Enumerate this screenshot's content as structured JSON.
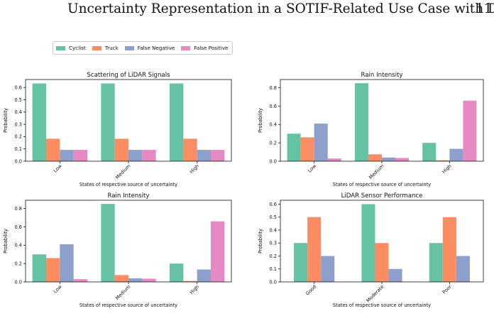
{
  "header": {
    "running_title": "Uncertainty Representation in a SOTIF-Related Use Case with DST",
    "page_number": "11"
  },
  "legend": [
    {
      "name": "Cyclist",
      "color": "#66c2a5"
    },
    {
      "name": "Truck",
      "color": "#fc8d62"
    },
    {
      "name": "False Negative",
      "color": "#8da0cb"
    },
    {
      "name": "False Positive",
      "color": "#e78ac3"
    }
  ],
  "chart_data": [
    {
      "type": "bar",
      "title": "Scattering of LiDAR Signals",
      "xlabel": "States of respective source of uncertainty",
      "ylabel": "Probability",
      "categories": [
        "Low",
        "Medium",
        "High"
      ],
      "ylim": [
        0,
        0.665
      ],
      "yticks": [
        0.0,
        0.1,
        0.2,
        0.3,
        0.4,
        0.5,
        0.6
      ],
      "ytick_labels": [
        "0.0",
        "0.1",
        "0.2",
        "0.3",
        "0.4",
        "0.5",
        "0.6"
      ],
      "series": [
        {
          "name": "Cyclist",
          "values": [
            0.633,
            0.633,
            0.633
          ]
        },
        {
          "name": "Truck",
          "values": [
            0.183,
            0.183,
            0.183
          ]
        },
        {
          "name": "False Negative",
          "values": [
            0.092,
            0.092,
            0.092
          ]
        },
        {
          "name": "False Positive",
          "values": [
            0.092,
            0.092,
            0.092
          ]
        }
      ]
    },
    {
      "type": "bar",
      "title": "Rain Intensity",
      "xlabel": "States of respective source of uncertainty",
      "ylabel": "Probability",
      "categories": [
        "Low",
        "Medium",
        "High"
      ],
      "ylim": [
        0,
        0.89
      ],
      "yticks": [
        0.0,
        0.2,
        0.4,
        0.6,
        0.8
      ],
      "ytick_labels": [
        "0.0",
        "0.2",
        "0.4",
        "0.6",
        "0.8"
      ],
      "series": [
        {
          "name": "Cyclist",
          "values": [
            0.3,
            0.85,
            0.2
          ]
        },
        {
          "name": "Truck",
          "values": [
            0.26,
            0.075,
            0.01
          ]
        },
        {
          "name": "False Negative",
          "values": [
            0.41,
            0.04,
            0.135
          ]
        },
        {
          "name": "False Positive",
          "values": [
            0.03,
            0.035,
            0.66
          ]
        }
      ]
    },
    {
      "type": "bar",
      "title": "Rain Intensity",
      "xlabel": "States of respective source of uncertainty",
      "ylabel": "Probability",
      "categories": [
        "Low",
        "Medium",
        "High"
      ],
      "ylim": [
        0,
        0.89
      ],
      "yticks": [
        0.0,
        0.2,
        0.4,
        0.6,
        0.8
      ],
      "ytick_labels": [
        "0.0",
        "0.2",
        "0.4",
        "0.6",
        "0.8"
      ],
      "series": [
        {
          "name": "Cyclist",
          "values": [
            0.3,
            0.85,
            0.2
          ]
        },
        {
          "name": "Truck",
          "values": [
            0.26,
            0.075,
            0.01
          ]
        },
        {
          "name": "False Negative",
          "values": [
            0.41,
            0.04,
            0.135
          ]
        },
        {
          "name": "False Positive",
          "values": [
            0.03,
            0.035,
            0.66
          ]
        }
      ]
    },
    {
      "type": "bar",
      "title": "LiDAR Sensor Performance",
      "xlabel": "States of respective source of uncertainty",
      "ylabel": "Probability",
      "categories": [
        "Good",
        "Moderate",
        "Poor"
      ],
      "ylim": [
        0,
        0.63
      ],
      "yticks": [
        0.0,
        0.1,
        0.2,
        0.3,
        0.4,
        0.5,
        0.6
      ],
      "ytick_labels": [
        "0.0",
        "0.1",
        "0.2",
        "0.3",
        "0.4",
        "0.5",
        "0.6"
      ],
      "series": [
        {
          "name": "Cyclist",
          "values": [
            0.3,
            0.6,
            0.3
          ]
        },
        {
          "name": "Truck",
          "values": [
            0.5,
            0.3,
            0.5
          ]
        },
        {
          "name": "False Negative",
          "values": [
            0.2,
            0.1,
            0.2
          ]
        }
      ]
    }
  ]
}
